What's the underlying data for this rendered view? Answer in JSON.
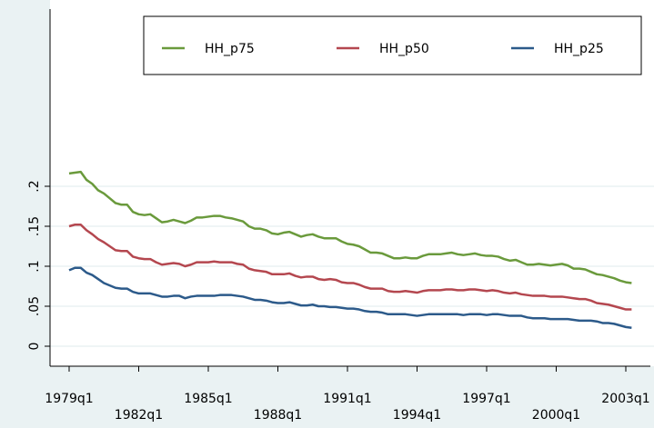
{
  "chart_data": {
    "type": "line",
    "x": [
      "1979q1",
      "1979q2",
      "1979q3",
      "1979q4",
      "1980q1",
      "1980q2",
      "1980q3",
      "1980q4",
      "1981q1",
      "1981q2",
      "1981q3",
      "1981q4",
      "1982q1",
      "1982q2",
      "1982q3",
      "1982q4",
      "1983q1",
      "1983q2",
      "1983q3",
      "1983q4",
      "1984q1",
      "1984q2",
      "1984q3",
      "1984q4",
      "1985q1",
      "1985q2",
      "1985q3",
      "1985q4",
      "1986q1",
      "1986q2",
      "1986q3",
      "1986q4",
      "1987q1",
      "1987q2",
      "1987q3",
      "1987q4",
      "1988q1",
      "1988q2",
      "1988q3",
      "1988q4",
      "1989q1",
      "1989q2",
      "1989q3",
      "1989q4",
      "1990q1",
      "1990q2",
      "1990q3",
      "1990q4",
      "1991q1",
      "1991q2",
      "1991q3",
      "1991q4",
      "1992q1",
      "1992q2",
      "1992q3",
      "1992q4",
      "1993q1",
      "1993q2",
      "1993q3",
      "1993q4",
      "1994q1",
      "1994q2",
      "1994q3",
      "1994q4",
      "1995q1",
      "1995q2",
      "1995q3",
      "1995q4",
      "1996q1",
      "1996q2",
      "1996q3",
      "1996q4",
      "1997q1",
      "1997q2",
      "1997q3",
      "1997q4",
      "1998q1",
      "1998q2",
      "1998q3",
      "1998q4",
      "1999q1",
      "1999q2",
      "1999q3",
      "1999q4",
      "2000q1",
      "2000q2",
      "2000q3",
      "2000q4",
      "2001q1",
      "2001q2",
      "2001q3",
      "2001q4",
      "2002q1",
      "2002q2",
      "2002q3",
      "2002q4",
      "2003q1",
      "2003q2"
    ],
    "xticks": [
      "1979q1",
      "1982q1",
      "1985q1",
      "1988q1",
      "1991q1",
      "1994q1",
      "1997q1",
      "2000q1",
      "2003q1"
    ],
    "series": [
      {
        "name": "HH_p75",
        "color": "#6a9a3c",
        "values": [
          0.216,
          0.217,
          0.218,
          0.208,
          0.203,
          0.195,
          0.191,
          0.185,
          0.179,
          0.177,
          0.177,
          0.168,
          0.165,
          0.164,
          0.165,
          0.16,
          0.155,
          0.156,
          0.158,
          0.156,
          0.154,
          0.157,
          0.161,
          0.161,
          0.162,
          0.163,
          0.163,
          0.161,
          0.16,
          0.158,
          0.156,
          0.15,
          0.147,
          0.147,
          0.145,
          0.141,
          0.14,
          0.142,
          0.143,
          0.14,
          0.137,
          0.139,
          0.14,
          0.137,
          0.135,
          0.135,
          0.135,
          0.131,
          0.128,
          0.127,
          0.125,
          0.121,
          0.117,
          0.117,
          0.116,
          0.113,
          0.11,
          0.11,
          0.111,
          0.11,
          0.11,
          0.113,
          0.115,
          0.115,
          0.115,
          0.116,
          0.117,
          0.115,
          0.114,
          0.115,
          0.116,
          0.114,
          0.113,
          0.113,
          0.112,
          0.109,
          0.107,
          0.108,
          0.105,
          0.102,
          0.102,
          0.103,
          0.102,
          0.101,
          0.102,
          0.103,
          0.101,
          0.097,
          0.097,
          0.096,
          0.093,
          0.09,
          0.089,
          0.087,
          0.085,
          0.082,
          0.08,
          0.079
        ]
      },
      {
        "name": "HH_p50",
        "color": "#b4474f",
        "values": [
          0.15,
          0.152,
          0.152,
          0.145,
          0.14,
          0.134,
          0.13,
          0.125,
          0.12,
          0.119,
          0.119,
          0.112,
          0.11,
          0.109,
          0.109,
          0.105,
          0.102,
          0.103,
          0.104,
          0.103,
          0.1,
          0.102,
          0.105,
          0.105,
          0.105,
          0.106,
          0.105,
          0.105,
          0.105,
          0.103,
          0.102,
          0.097,
          0.095,
          0.094,
          0.093,
          0.09,
          0.09,
          0.09,
          0.091,
          0.088,
          0.086,
          0.087,
          0.087,
          0.084,
          0.083,
          0.084,
          0.083,
          0.08,
          0.079,
          0.079,
          0.077,
          0.074,
          0.072,
          0.072,
          0.072,
          0.069,
          0.068,
          0.068,
          0.069,
          0.068,
          0.067,
          0.069,
          0.07,
          0.07,
          0.07,
          0.071,
          0.071,
          0.07,
          0.07,
          0.071,
          0.071,
          0.07,
          0.069,
          0.07,
          0.069,
          0.067,
          0.066,
          0.067,
          0.065,
          0.064,
          0.063,
          0.063,
          0.063,
          0.062,
          0.062,
          0.062,
          0.061,
          0.06,
          0.059,
          0.059,
          0.057,
          0.054,
          0.053,
          0.052,
          0.05,
          0.048,
          0.046,
          0.046
        ]
      },
      {
        "name": "HH_p25",
        "color": "#2c5a8a",
        "values": [
          0.095,
          0.098,
          0.098,
          0.092,
          0.089,
          0.084,
          0.079,
          0.076,
          0.073,
          0.072,
          0.072,
          0.068,
          0.066,
          0.066,
          0.066,
          0.064,
          0.062,
          0.062,
          0.063,
          0.063,
          0.06,
          0.062,
          0.063,
          0.063,
          0.063,
          0.063,
          0.064,
          0.064,
          0.064,
          0.063,
          0.062,
          0.06,
          0.058,
          0.058,
          0.057,
          0.055,
          0.054,
          0.054,
          0.055,
          0.053,
          0.051,
          0.051,
          0.052,
          0.05,
          0.05,
          0.049,
          0.049,
          0.048,
          0.047,
          0.047,
          0.046,
          0.044,
          0.043,
          0.043,
          0.042,
          0.04,
          0.04,
          0.04,
          0.04,
          0.039,
          0.038,
          0.039,
          0.04,
          0.04,
          0.04,
          0.04,
          0.04,
          0.04,
          0.039,
          0.04,
          0.04,
          0.04,
          0.039,
          0.04,
          0.04,
          0.039,
          0.038,
          0.038,
          0.038,
          0.036,
          0.035,
          0.035,
          0.035,
          0.034,
          0.034,
          0.034,
          0.034,
          0.033,
          0.032,
          0.032,
          0.032,
          0.031,
          0.029,
          0.029,
          0.028,
          0.026,
          0.024,
          0.023
        ]
      }
    ],
    "ylim": [
      -0.025,
      0.4216
    ],
    "yticks": [
      0,
      {
        "value": 0.05,
        "label": ".05"
      },
      {
        "value": 0.1,
        "label": ".1"
      },
      {
        "value": 0.15,
        "label": ".15"
      },
      {
        "value": 0.2,
        "label": ".2"
      }
    ],
    "grid": true,
    "legend": "top-right"
  }
}
